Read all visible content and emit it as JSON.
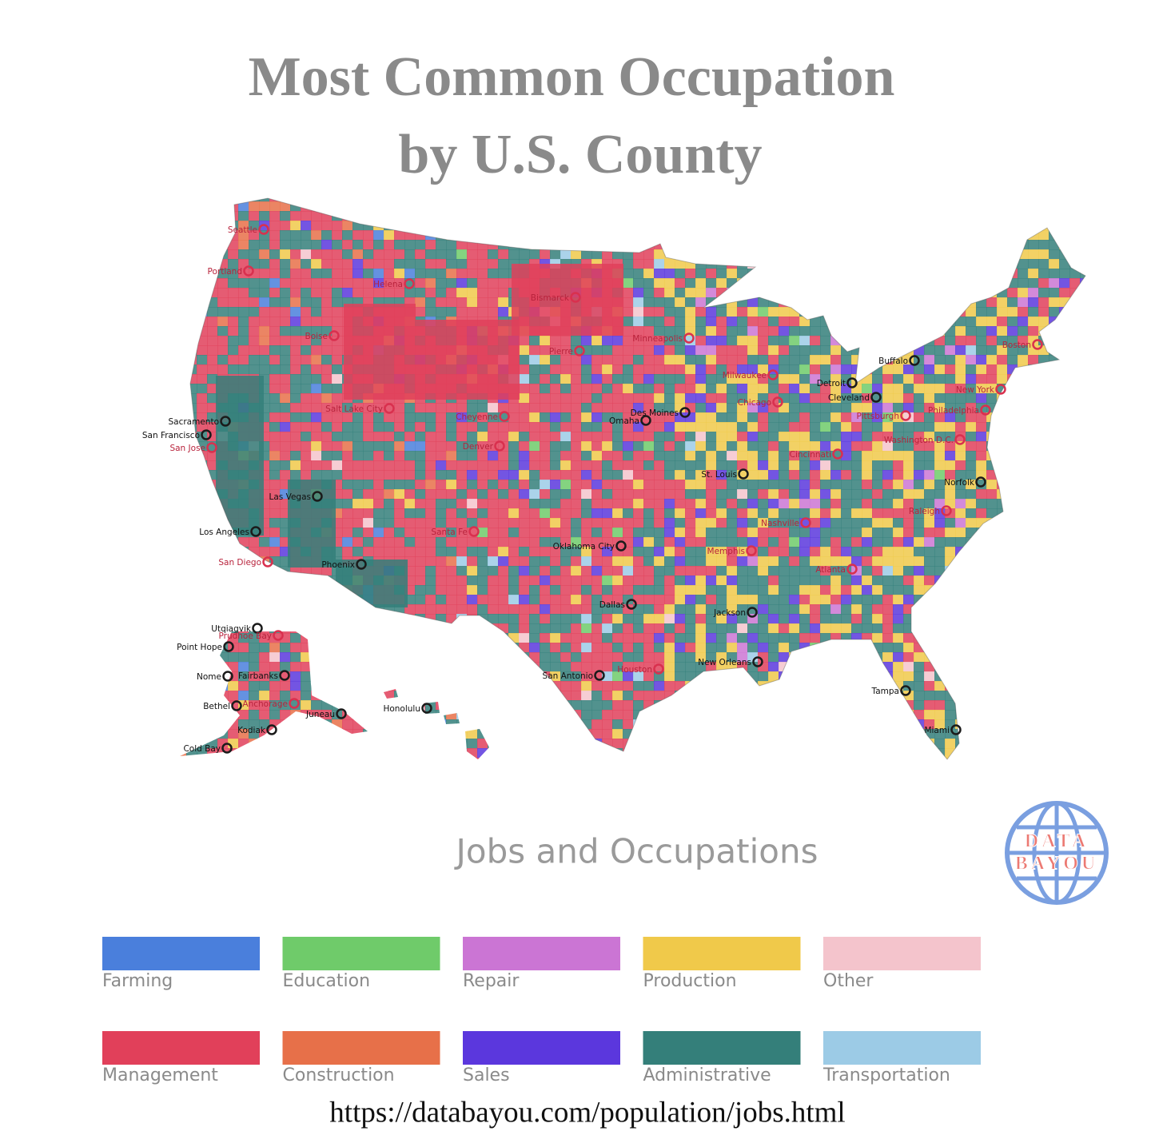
{
  "title": [
    "Most Common Occupation",
    "by U.S. County"
  ],
  "cities": [
    "Seattle",
    "Portland",
    "Helena",
    "Bismarck",
    "Boise",
    "Minneapolis",
    "Pierre",
    "Buffalo",
    "Boston",
    "Milwaukee",
    "Detroit",
    "Chicago",
    "Cleveland",
    "New York",
    "Salt Lake City",
    "Cheyenne",
    "Omaha",
    "Des Moines",
    "Pittsburgh",
    "Philadelphia",
    "Sacramento",
    "San Francisco",
    "San Jose",
    "Denver",
    "Washington D.C.",
    "Cincinnati",
    "St. Louis",
    "Norfolk",
    "Las Vegas",
    "Raleigh",
    "Nashville",
    "Los Angeles",
    "Santa Fe",
    "Oklahoma City",
    "Memphis",
    "San Diego",
    "Phoenix",
    "Atlanta",
    "Dallas",
    "Jackson",
    "Houston",
    "New Orleans",
    "San Antonio",
    "Tampa",
    "Miami",
    "Utqiagvik",
    "Prudhoe Bay",
    "Point Hope",
    "Nome",
    "Fairbanks",
    "Bethel",
    "Anchorage",
    "Juneau",
    "Kodiak",
    "Cold Bay",
    "Honolulu"
  ],
  "legend": {
    "title": "Jobs and Occupations",
    "items": [
      {
        "label": "Farming",
        "color": "#4a7fdc"
      },
      {
        "label": "Education",
        "color": "#6fcb6a"
      },
      {
        "label": "Repair",
        "color": "#cb75d4"
      },
      {
        "label": "Production",
        "color": "#f0c94a"
      },
      {
        "label": "Other",
        "color": "#f4c4cc"
      },
      {
        "label": "Management",
        "color": "#e1405a"
      },
      {
        "label": "Construction",
        "color": "#e77049"
      },
      {
        "label": "Sales",
        "color": "#5b37dd"
      },
      {
        "label": "Administrative",
        "color": "#347f7a"
      },
      {
        "label": "Transportation",
        "color": "#9ccbe6"
      }
    ]
  },
  "logo": [
    "DATA",
    "BAYOU"
  ],
  "url": "https://databayou.com/population/jobs.html"
}
